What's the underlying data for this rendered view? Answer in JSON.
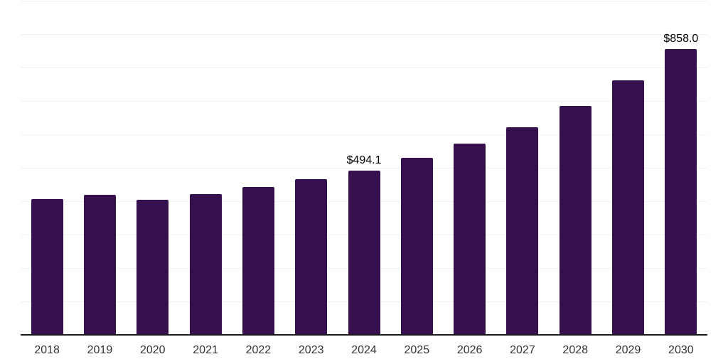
{
  "chart_data": {
    "type": "bar",
    "title": "",
    "xlabel": "",
    "ylabel": "",
    "categories": [
      "2018",
      "2019",
      "2020",
      "2021",
      "2022",
      "2023",
      "2024",
      "2025",
      "2026",
      "2027",
      "2028",
      "2029",
      "2030"
    ],
    "values": [
      409,
      421,
      406,
      423,
      445,
      468,
      494.1,
      532,
      574,
      623,
      687,
      764,
      858.0
    ],
    "data_labels": [
      null,
      null,
      null,
      null,
      null,
      null,
      "$494.1",
      null,
      null,
      null,
      null,
      null,
      "$858.0"
    ],
    "ylim": [
      0,
      1000
    ],
    "grid_interval": 100,
    "grid": true,
    "y_axis_tick_labels_visible": false,
    "legend": false,
    "colors": {
      "bar": "#36104e",
      "grid": "#f2f2f2",
      "axis": "#1a1a1a",
      "data_label": "#000000",
      "tick_label": "#333333",
      "background": "#ffffff"
    }
  }
}
